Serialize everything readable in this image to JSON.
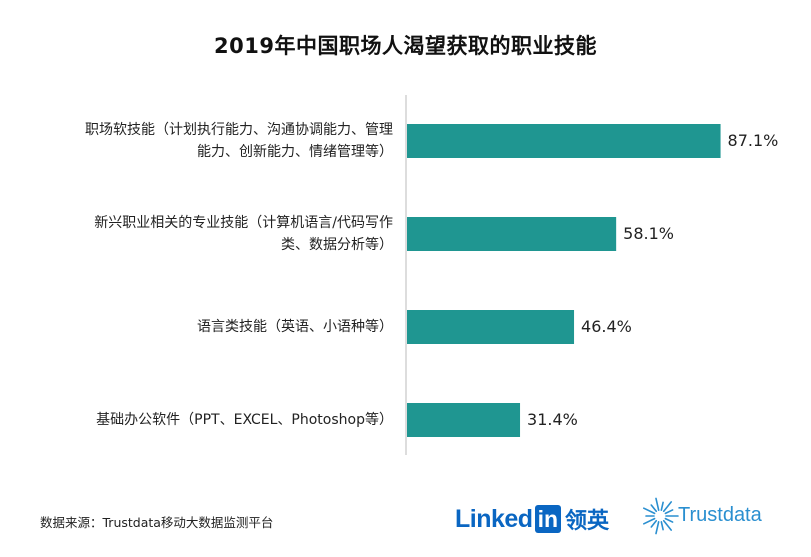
{
  "title": "2019年中国职场人渴望获取的职业技能",
  "source": "数据来源：Trustdata移动大数据监测平台",
  "logos": {
    "linkedin_word": "Linked",
    "linkedin_box": "in",
    "linkedin_cn": "领英",
    "trustdata": "Trustdata"
  },
  "colors": {
    "bar": "#1f9691",
    "axis": "#bbbbbb",
    "linkedin": "#0a66c2",
    "trustdata": "#2a8fd0"
  },
  "chart_data": {
    "type": "bar",
    "orientation": "horizontal",
    "categories": [
      [
        "职场软技能（计划执行能力、沟通协调能力、管理",
        "能力、创新能力、情绪管理等）"
      ],
      [
        "新兴职业相关的专业技能（计算机语言/代码写作",
        "类、数据分析等）"
      ],
      [
        "语言类技能（英语、小语种等）"
      ],
      [
        "基础办公软件（PPT、EXCEL、Photoshop等）"
      ]
    ],
    "values": [
      87.1,
      58.1,
      46.4,
      31.4
    ],
    "value_labels": [
      "87.1%",
      "58.1%",
      "46.4%",
      "31.4%"
    ],
    "unit": "%",
    "xlim": [
      0,
      100
    ],
    "grid": false,
    "legend": "none"
  }
}
